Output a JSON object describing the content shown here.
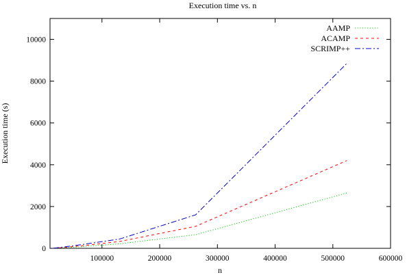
{
  "chart_data": {
    "type": "line",
    "title": "Execution time vs. n",
    "xlabel": "n",
    "ylabel": "Execution time (s)",
    "xlim": [
      10000,
      600000
    ],
    "ylim": [
      0,
      11000
    ],
    "xticks": [
      100000,
      200000,
      300000,
      400000,
      500000,
      600000
    ],
    "yticks": [
      0,
      2000,
      4000,
      6000,
      8000,
      10000
    ],
    "grid": false,
    "legend_position": "top-right",
    "series": [
      {
        "name": "AAMP",
        "color": "#00cc00",
        "dash": "dotted",
        "x": [
          16384,
          32768,
          65536,
          131072,
          262144,
          524288
        ],
        "y": [
          5,
          25,
          80,
          220,
          650,
          2650
        ]
      },
      {
        "name": "ACAMP",
        "color": "#ff0000",
        "dash": "dashed",
        "x": [
          16384,
          32768,
          65536,
          131072,
          262144,
          524288
        ],
        "y": [
          8,
          40,
          120,
          330,
          1050,
          4200
        ]
      },
      {
        "name": "SCRIMP++",
        "color": "#0000cc",
        "dash": "dash-dot",
        "x": [
          16384,
          32768,
          65536,
          131072,
          262144,
          524288
        ],
        "y": [
          10,
          60,
          180,
          450,
          1600,
          8850
        ]
      }
    ]
  }
}
